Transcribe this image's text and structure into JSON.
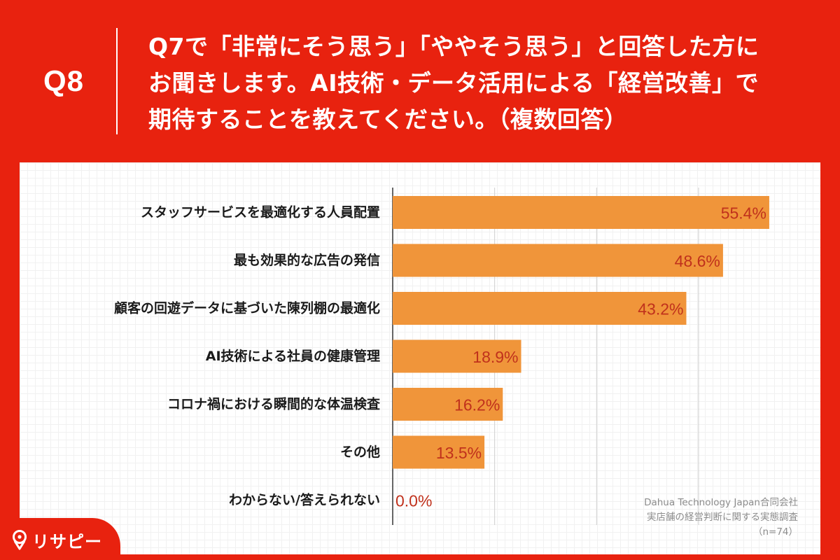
{
  "header": {
    "question_number": "Q8",
    "question_lines": [
      "Q7で「非常にそう思う」「ややそう思う」と回答した方に",
      "お聞きします。AI技術・データ活用による「経営改善」で",
      "期待することを教えてください。（複数回答）"
    ]
  },
  "colors": {
    "background": "#e8220f",
    "bar": "#f0953a",
    "value_label": "#c0311c",
    "panel": "#ffffff"
  },
  "chart_data": {
    "type": "bar",
    "orientation": "horizontal",
    "categories": [
      "スタッフサービスを最適化する人員配置",
      "最も効果的な広告の発信",
      "顧客の回遊データに基づいた陳列棚の最適化",
      "AI技術による社員の健康管理",
      "コロナ禍における瞬間的な体温検査",
      "その他",
      "わからない/答えられない"
    ],
    "values": [
      55.4,
      48.6,
      43.2,
      18.9,
      16.2,
      13.5,
      0.0
    ],
    "value_labels": [
      "55.4%",
      "48.6%",
      "43.2%",
      "18.9%",
      "16.2%",
      "13.5%",
      "0.0%"
    ],
    "xlim": [
      0,
      60
    ],
    "grid": true,
    "gridline_values": [
      15,
      30,
      45
    ],
    "title": "",
    "xlabel": "",
    "ylabel": ""
  },
  "source": {
    "company": "Dahua Technology Japan合同会社",
    "survey": "実店舗の経営判断に関する実態調査",
    "sample": "（n=74）"
  },
  "logo": {
    "icon": "location-pin-icon",
    "text": "リサピー"
  }
}
